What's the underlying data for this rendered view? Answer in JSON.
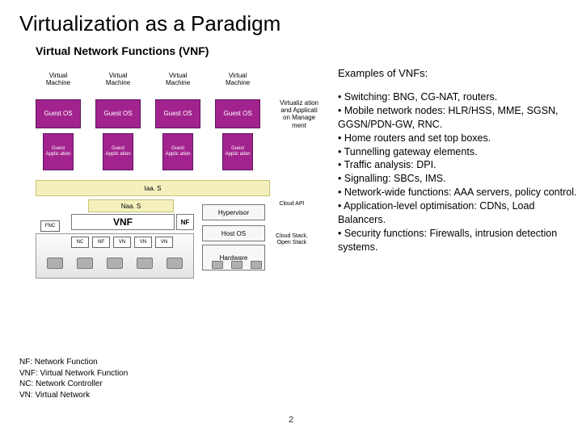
{
  "colors": {
    "purple": "#a2238e",
    "purple_border": "#5c165c",
    "straw": "#f4f0be",
    "straw_border": "#c9c36e",
    "grey_node": "#b0b0b0",
    "box_border": "#777777",
    "bg": "#ffffff",
    "text": "#000000"
  },
  "font_family": "Arial",
  "page_number": "2",
  "title": "Virtualization as a Paradigm",
  "subtitle": "Virtual Network Functions (VNF)",
  "examples_header": "Examples of VNFs:",
  "bullets": [
    "Switching: BNG, CG-NAT, routers.",
    "Mobile network nodes: HLR/HSS, MME, SGSN, GGSN/PDN-GW, RNC.",
    "Home routers and set top boxes.",
    "Tunnelling gateway elements.",
    "Traffic analysis: DPI.",
    "Signalling: SBCs, IMS.",
    "Network-wide functions: AAA servers, policy control.",
    "Application-level optimisation: CDNs, Load Balancers.",
    "Security functions: Firewalls, intrusion detection systems."
  ],
  "vm": {
    "columns": [
      {
        "label": "Virtual Machine",
        "guest": "Guest OS",
        "app": "Guest Applic ation"
      },
      {
        "label": "Virtual Machine",
        "guest": "Guest OS",
        "app": "Guest Applic ation"
      },
      {
        "label": "Virtual Machine",
        "guest": "Guest OS",
        "app": "Guest Applic ation"
      },
      {
        "label": "Virtual Machine",
        "guest": "Guest OS",
        "app": "Guest Applic ation"
      }
    ],
    "virt_mgmt": "Virtualiz ation and Applicati on Manage ment"
  },
  "iaas": "Iaa. S",
  "naas": "Naa. S",
  "vnf": "VNF",
  "nf": "NF",
  "fnc": "FNC",
  "net_row": [
    "NC",
    "NF",
    "VN",
    "VN",
    "VN"
  ],
  "hypervisor": "Hypervisor",
  "host_os": "Host OS",
  "hardware": "Hardware",
  "cloud_api": "Cloud API",
  "cloud_stack": "Cloud Stack, Open Stack",
  "legend": [
    "NF: Network Function",
    "VNF: Virtual Network Function",
    "NC: Network Controller",
    "VN: Virtual Network"
  ]
}
